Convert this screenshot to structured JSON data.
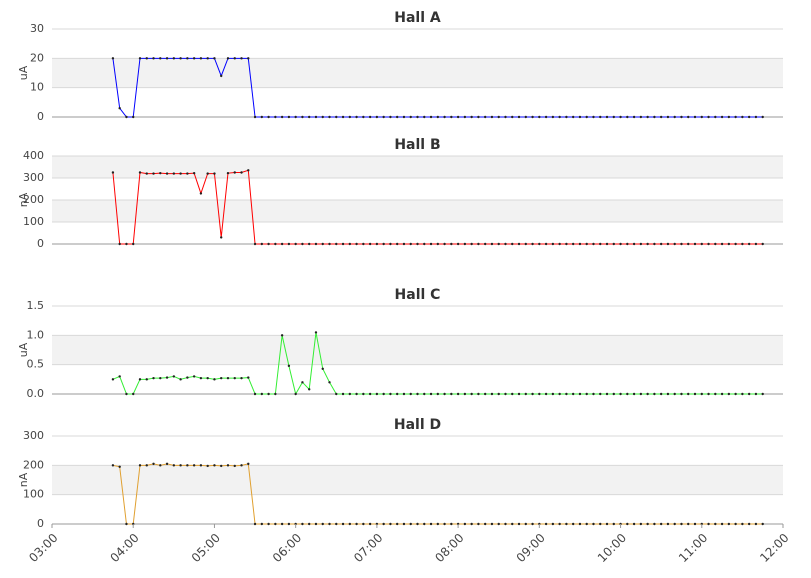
{
  "chart_data": {
    "type": "line",
    "xlim": [
      "03:00",
      "12:00"
    ],
    "xticks": [
      "03:00",
      "04:00",
      "05:00",
      "06:00",
      "07:00",
      "08:00",
      "09:00",
      "10:00",
      "11:00",
      "12:00"
    ],
    "x": [
      "03:45",
      "03:50",
      "03:55",
      "04:00",
      "04:05",
      "04:10",
      "04:15",
      "04:20",
      "04:25",
      "04:30",
      "04:35",
      "04:40",
      "04:45",
      "04:50",
      "04:55",
      "05:00",
      "05:05",
      "05:10",
      "05:15",
      "05:20",
      "05:25",
      "05:30",
      "05:35",
      "05:40",
      "05:45",
      "05:50",
      "05:55",
      "06:00",
      "06:05",
      "06:10",
      "06:15",
      "06:20",
      "06:25",
      "06:30",
      "06:35",
      "06:40",
      "06:45",
      "06:50",
      "06:55",
      "07:00",
      "07:05",
      "07:10",
      "07:15",
      "07:20",
      "07:25",
      "07:30",
      "07:35",
      "07:40",
      "07:45",
      "07:50",
      "07:55",
      "08:00",
      "08:05",
      "08:10",
      "08:15",
      "08:20",
      "08:25",
      "08:30",
      "08:35",
      "08:40",
      "08:45",
      "08:50",
      "08:55",
      "09:00",
      "09:05",
      "09:10",
      "09:15",
      "09:20",
      "09:25",
      "09:30",
      "09:35",
      "09:40",
      "09:45",
      "09:50",
      "09:55",
      "10:00",
      "10:05",
      "10:10",
      "10:15",
      "10:20",
      "10:25",
      "10:30",
      "10:35",
      "10:40",
      "10:45",
      "10:50",
      "10:55",
      "11:00",
      "11:05",
      "11:10",
      "11:15",
      "11:20",
      "11:25",
      "11:30",
      "11:35",
      "11:40",
      "11:45"
    ],
    "panels": [
      {
        "title": "Hall A",
        "ylabel": "uA",
        "color": "#0000ff",
        "ylim": [
          0,
          30
        ],
        "yticks": [
          0,
          10,
          20,
          30
        ],
        "values": [
          20,
          3,
          0,
          0,
          20,
          20,
          20,
          20,
          20,
          20,
          20,
          20,
          20,
          20,
          20,
          20,
          14,
          20,
          20,
          20,
          20,
          0,
          0,
          0,
          0,
          0,
          0,
          0,
          0,
          0,
          0,
          0,
          0,
          0,
          0,
          0,
          0,
          0,
          0,
          0,
          0,
          0,
          0,
          0,
          0,
          0,
          0,
          0,
          0,
          0,
          0,
          0,
          0,
          0,
          0,
          0,
          0,
          0,
          0,
          0,
          0,
          0,
          0,
          0,
          0,
          0,
          0,
          0,
          0,
          0,
          0,
          0,
          0,
          0,
          0,
          0,
          0,
          0,
          0,
          0,
          0,
          0,
          0,
          0,
          0,
          0,
          0,
          0,
          0,
          0,
          0,
          0,
          0,
          0,
          0,
          0,
          0
        ]
      },
      {
        "title": "Hall B",
        "ylabel": "nA",
        "color": "#ff0000",
        "ylim": [
          0,
          400
        ],
        "yticks": [
          0,
          100,
          200,
          300,
          400
        ],
        "values": [
          325,
          0,
          0,
          0,
          325,
          320,
          320,
          322,
          320,
          320,
          320,
          320,
          322,
          230,
          320,
          320,
          30,
          322,
          325,
          325,
          335,
          0,
          0,
          0,
          0,
          0,
          0,
          0,
          0,
          0,
          0,
          0,
          0,
          0,
          0,
          0,
          0,
          0,
          0,
          0,
          0,
          0,
          0,
          0,
          0,
          0,
          0,
          0,
          0,
          0,
          0,
          0,
          0,
          0,
          0,
          0,
          0,
          0,
          0,
          0,
          0,
          0,
          0,
          0,
          0,
          0,
          0,
          0,
          0,
          0,
          0,
          0,
          0,
          0,
          0,
          0,
          0,
          0,
          0,
          0,
          0,
          0,
          0,
          0,
          0,
          0,
          0,
          0,
          0,
          0,
          0,
          0,
          0,
          0,
          0,
          0,
          0
        ]
      },
      {
        "title": "Hall C",
        "ylabel": "uA",
        "color": "#33ee33",
        "ylim": [
          0,
          1.5
        ],
        "yticks": [
          {
            "value": 0,
            "label": "0.0"
          },
          0.5,
          {
            "value": 1,
            "label": "1.0"
          },
          1.5
        ],
        "values": [
          0.25,
          0.3,
          0,
          0,
          0.25,
          0.25,
          0.27,
          0.27,
          0.28,
          0.3,
          0.25,
          0.28,
          0.3,
          0.27,
          0.27,
          0.25,
          0.27,
          0.27,
          0.27,
          0.27,
          0.28,
          0,
          0,
          0,
          0,
          1.0,
          0.48,
          0,
          0.2,
          0.08,
          1.05,
          0.43,
          0.2,
          0,
          0,
          0,
          0,
          0,
          0,
          0,
          0,
          0,
          0,
          0,
          0,
          0,
          0,
          0,
          0,
          0,
          0,
          0,
          0,
          0,
          0,
          0,
          0,
          0,
          0,
          0,
          0,
          0,
          0,
          0,
          0,
          0,
          0,
          0,
          0,
          0,
          0,
          0,
          0,
          0,
          0,
          0,
          0,
          0,
          0,
          0,
          0,
          0,
          0,
          0,
          0,
          0,
          0,
          0,
          0,
          0,
          0,
          0,
          0,
          0,
          0,
          0,
          0
        ]
      },
      {
        "title": "Hall D",
        "ylabel": "nA",
        "color": "#e0a030",
        "ylim": [
          0,
          300
        ],
        "yticks": [
          0,
          100,
          200,
          300
        ],
        "values": [
          200,
          195,
          0,
          0,
          200,
          200,
          205,
          200,
          205,
          200,
          200,
          200,
          200,
          200,
          198,
          200,
          198,
          200,
          198,
          200,
          205,
          0,
          0,
          0,
          0,
          0,
          0,
          0,
          0,
          0,
          0,
          0,
          0,
          0,
          0,
          0,
          0,
          0,
          0,
          0,
          0,
          0,
          0,
          0,
          0,
          0,
          0,
          0,
          0,
          0,
          0,
          0,
          0,
          0,
          0,
          0,
          0,
          0,
          0,
          0,
          0,
          0,
          0,
          0,
          0,
          0,
          0,
          0,
          0,
          0,
          0,
          0,
          0,
          0,
          0,
          0,
          0,
          0,
          0,
          0,
          0,
          0,
          0,
          0,
          0,
          0,
          0,
          0,
          0,
          0,
          0,
          0,
          0,
          0,
          0,
          0,
          0
        ]
      }
    ]
  }
}
